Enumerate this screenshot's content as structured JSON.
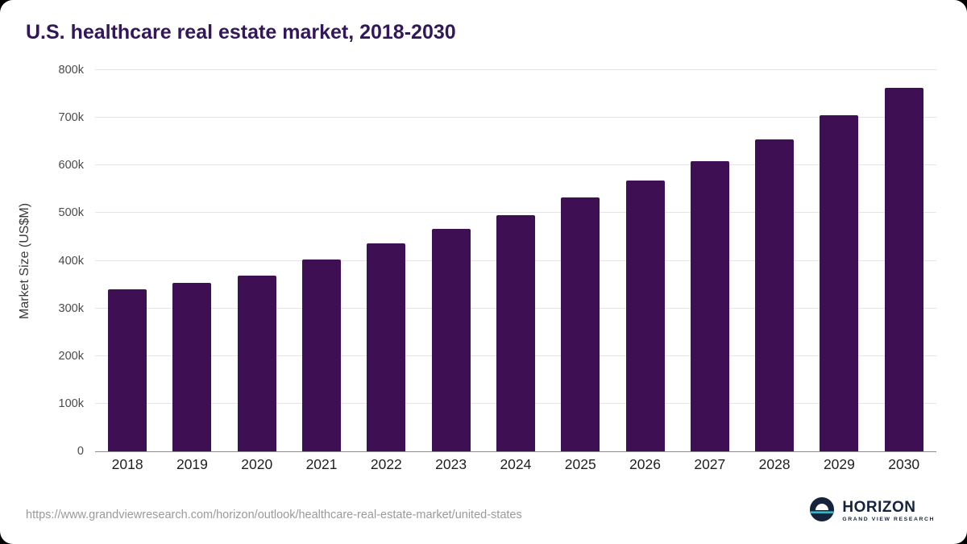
{
  "title": "U.S. healthcare real estate market, 2018-2030",
  "chart_data": {
    "type": "bar",
    "title": "U.S. healthcare real estate market, 2018-2030",
    "xlabel": "",
    "ylabel": "Market Size (US$M)",
    "ylim": [
      0,
      800000
    ],
    "grid": "horizontal",
    "categories": [
      "2018",
      "2019",
      "2020",
      "2021",
      "2022",
      "2023",
      "2024",
      "2025",
      "2026",
      "2027",
      "2028",
      "2029",
      "2030"
    ],
    "values": [
      340000,
      353000,
      368000,
      403000,
      437000,
      466000,
      496000,
      532000,
      568000,
      609000,
      655000,
      706000,
      762000
    ],
    "yticks": [
      {
        "value": 0,
        "label": "0"
      },
      {
        "value": 100000,
        "label": "100k"
      },
      {
        "value": 200000,
        "label": "200k"
      },
      {
        "value": 300000,
        "label": "300k"
      },
      {
        "value": 400000,
        "label": "400k"
      },
      {
        "value": 500000,
        "label": "500k"
      },
      {
        "value": 600000,
        "label": "600k"
      },
      {
        "value": 700000,
        "label": "700k"
      },
      {
        "value": 800000,
        "label": "800k"
      }
    ],
    "bar_color": "#3e0f52"
  },
  "footer": {
    "source_url": "https://www.grandviewresearch.com/horizon/outlook/healthcare-real-estate-market/united-states",
    "logo_name": "HORIZON",
    "logo_subtitle": "GRAND VIEW RESEARCH"
  },
  "colors": {
    "bar": "#3e0f52",
    "title": "#32175a",
    "gridline": "#e4e4e4",
    "axis": "#8c8c8c",
    "logo_navy": "#16233d",
    "logo_teal": "#35b7c6"
  }
}
